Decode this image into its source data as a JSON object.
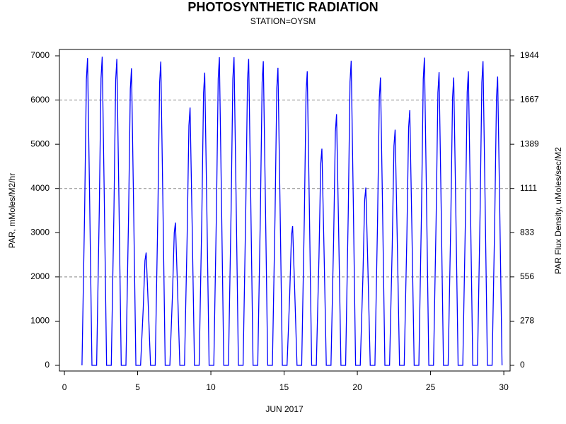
{
  "chart_data": {
    "type": "line",
    "title": "PHOTOSYNTHETIC RADIATION",
    "subtitle": "STATION=OYSM",
    "xlabel": "JUN 2017",
    "ylabel": "PAR, mMoles/M2/hr",
    "y2label": "PAR Flux Density, uMoles/sec/M2",
    "color": "#0000ff",
    "xlim": [
      -0.34,
      30.43
    ],
    "xticks": [
      0,
      5,
      10,
      15,
      20,
      25,
      30
    ],
    "ylim": [
      -128,
      7144
    ],
    "yticks": [
      0,
      1000,
      2000,
      3000,
      4000,
      5000,
      6000,
      7000
    ],
    "y2lim": [
      -35.6,
      1984.4
    ],
    "y2ticks": [
      0,
      {
        "value": 277.8,
        "label": "278"
      },
      {
        "value": 555.6,
        "label": "556"
      },
      {
        "value": 833.3,
        "label": "833"
      },
      {
        "value": 1111.1,
        "label": "1111"
      },
      {
        "value": 1388.9,
        "label": "1389"
      },
      {
        "value": 1666.7,
        "label": "1667"
      },
      {
        "value": 1944.4,
        "label": "1944"
      }
    ],
    "grid_at": [
      2000,
      4000,
      6000
    ],
    "x": [
      1.2,
      1.38,
      1.5,
      1.58,
      1.72,
      1.88,
      2.2,
      2.38,
      2.5,
      2.58,
      2.72,
      2.88,
      3.2,
      3.38,
      3.5,
      3.58,
      3.72,
      3.88,
      4.2,
      4.38,
      4.5,
      4.58,
      4.72,
      4.88,
      5.2,
      5.38,
      5.5,
      5.58,
      5.72,
      5.88,
      6.2,
      6.38,
      6.5,
      6.58,
      6.72,
      6.88,
      7.2,
      7.38,
      7.5,
      7.58,
      7.72,
      7.88,
      8.2,
      8.38,
      8.5,
      8.58,
      8.72,
      8.88,
      9.2,
      9.38,
      9.5,
      9.58,
      9.72,
      9.88,
      10.2,
      10.38,
      10.5,
      10.58,
      10.72,
      10.88,
      11.2,
      11.38,
      11.5,
      11.58,
      11.72,
      11.88,
      12.2,
      12.38,
      12.5,
      12.58,
      12.72,
      12.88,
      13.2,
      13.38,
      13.5,
      13.58,
      13.72,
      13.88,
      14.2,
      14.38,
      14.5,
      14.58,
      14.72,
      14.88,
      15.2,
      15.38,
      15.5,
      15.58,
      15.72,
      15.88,
      16.2,
      16.38,
      16.5,
      16.58,
      16.72,
      16.88,
      17.2,
      17.38,
      17.5,
      17.58,
      17.72,
      17.88,
      18.2,
      18.38,
      18.5,
      18.58,
      18.72,
      18.88,
      19.2,
      19.38,
      19.5,
      19.58,
      19.72,
      19.88,
      20.2,
      20.38,
      20.5,
      20.58,
      20.72,
      20.88,
      21.2,
      21.38,
      21.5,
      21.58,
      21.72,
      21.88,
      22.2,
      22.38,
      22.5,
      22.58,
      22.72,
      22.88,
      23.2,
      23.38,
      23.5,
      23.58,
      23.72,
      23.88,
      24.2,
      24.38,
      24.5,
      24.58,
      24.72,
      24.88,
      25.2,
      25.38,
      25.5,
      25.58,
      25.72,
      25.88,
      26.2,
      26.38,
      26.5,
      26.58,
      26.72,
      26.88,
      27.2,
      27.38,
      27.5,
      27.58,
      27.72,
      27.88,
      28.2,
      28.38,
      28.5,
      28.58,
      28.72,
      28.88,
      29.2,
      29.38,
      29.5,
      29.58,
      29.72,
      29.88
    ],
    "values": [
      0,
      3480,
      6460,
      6950,
      3820,
      0,
      0,
      3490,
      6490,
      6980,
      3840,
      0,
      0,
      3470,
      6440,
      6930,
      3810,
      0,
      0,
      3360,
      6250,
      6720,
      3700,
      0,
      0,
      1280,
      2370,
      2550,
      1400,
      0,
      0,
      3440,
      6390,
      6870,
      3780,
      0,
      0,
      1620,
      3000,
      3230,
      1780,
      0,
      0,
      2920,
      5420,
      5830,
      3210,
      0,
      0,
      3310,
      6160,
      6620,
      3640,
      0,
      0,
      3490,
      6480,
      6970,
      3830,
      0,
      0,
      3490,
      6480,
      6970,
      3830,
      0,
      0,
      3470,
      6440,
      6930,
      3810,
      0,
      0,
      3440,
      6400,
      6880,
      3780,
      0,
      0,
      3370,
      6260,
      6730,
      3700,
      0,
      0,
      1580,
      2930,
      3150,
      1730,
      0,
      0,
      3330,
      6180,
      6650,
      3660,
      0,
      0,
      2450,
      4560,
      4900,
      2700,
      0,
      0,
      2840,
      5280,
      5680,
      3120,
      0,
      0,
      3450,
      6410,
      6890,
      3790,
      0,
      0,
      2010,
      3740,
      4020,
      2210,
      0,
      0,
      3260,
      6050,
      6510,
      3580,
      0,
      0,
      2670,
      4960,
      5330,
      2930,
      0,
      0,
      2890,
      5370,
      5770,
      3170,
      0,
      0,
      3480,
      6470,
      6960,
      3830,
      0,
      0,
      3320,
      6170,
      6630,
      3650,
      0,
      0,
      3260,
      6050,
      6510,
      3580,
      0,
      0,
      3330,
      6180,
      6650,
      3660,
      0,
      0,
      3440,
      6400,
      6880,
      3780,
      0,
      0,
      3270,
      6070,
      6530,
      3590,
      0
    ]
  }
}
